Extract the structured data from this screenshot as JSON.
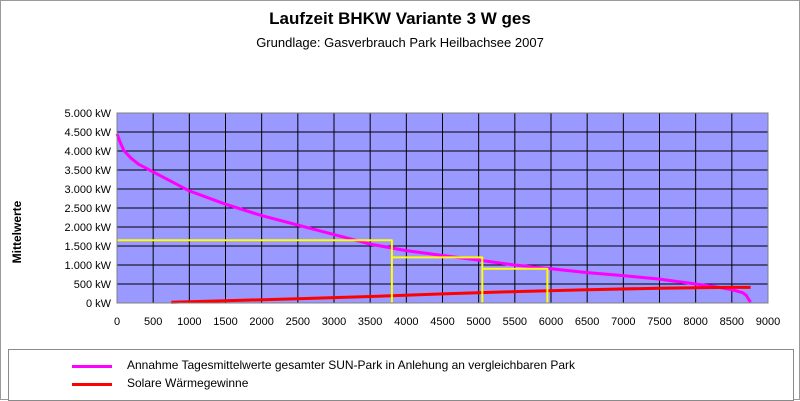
{
  "chart_data": {
    "type": "line",
    "title": "Laufzeit BHKW Variante 3 W ges",
    "subtitle": "Grundlage: Gasverbrauch Park Heilbachsee 2007",
    "ylabel": "Mittelwerte",
    "xlabel": "",
    "xlim": [
      0,
      9000
    ],
    "ylim": [
      0,
      5000
    ],
    "x_ticks": [
      "0",
      "500",
      "1000",
      "1500",
      "2000",
      "2500",
      "3000",
      "3500",
      "4000",
      "4500",
      "5000",
      "5500",
      "6000",
      "6500",
      "7000",
      "7500",
      "8000",
      "8500",
      "9000"
    ],
    "y_ticks": [
      "0 kW",
      "500 kW",
      "1.000 kW",
      "1.500 kW",
      "2.000 kW",
      "2.500 kW",
      "3.000 kW",
      "3.500 kW",
      "4.000 kW",
      "4.500 kW",
      "5.000 kW"
    ],
    "grid": true,
    "plot_background": "#9999ff",
    "legend_position": "bottom",
    "series": [
      {
        "name": "Annahme Tagesmittelwerte gesamter SUN-Park in Anlehung an vergleichbaren Park",
        "color": "#ff00ff",
        "x": [
          0,
          50,
          100,
          200,
          300,
          400,
          500,
          750,
          1000,
          1500,
          2000,
          2500,
          3000,
          3500,
          4000,
          4500,
          5000,
          5500,
          6000,
          6500,
          7000,
          7500,
          8000,
          8300,
          8500,
          8650,
          8700,
          8730,
          8760
        ],
        "y": [
          4450,
          4200,
          4000,
          3800,
          3650,
          3550,
          3450,
          3200,
          2950,
          2600,
          2300,
          2050,
          1800,
          1550,
          1380,
          1250,
          1130,
          1000,
          900,
          800,
          720,
          630,
          500,
          420,
          350,
          270,
          200,
          100,
          20
        ]
      },
      {
        "name": "Solare Wärmegewinne",
        "color": "#ff0000",
        "x": [
          750,
          1500,
          2500,
          3500,
          4500,
          5500,
          6500,
          7500,
          8000,
          8500,
          8760
        ],
        "y": [
          20,
          60,
          110,
          170,
          240,
          300,
          350,
          390,
          400,
          410,
          410
        ]
      },
      {
        "name": "",
        "color": "#ffff00",
        "x": [
          0,
          3800,
          3800,
          3800,
          5050,
          5050,
          5050,
          5050,
          5950,
          5950
        ],
        "y": [
          1650,
          1650,
          0,
          1200,
          1200,
          0,
          0,
          900,
          900,
          0
        ]
      }
    ]
  }
}
